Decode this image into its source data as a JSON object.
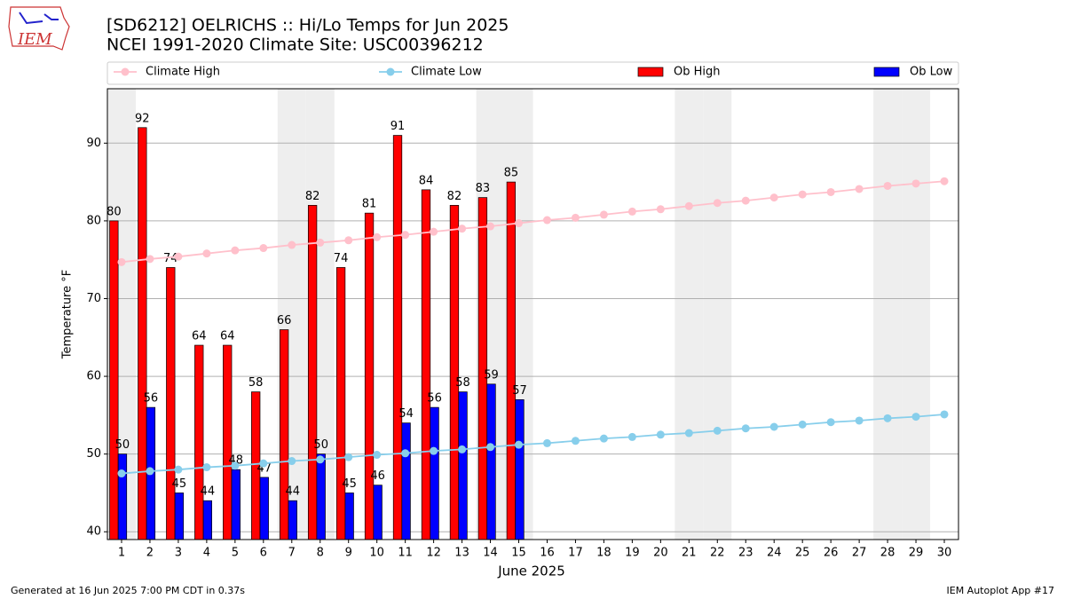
{
  "chart_data": {
    "type": "bar",
    "title": "[SD6212] OELRICHS :: Hi/Lo Temps for Jun 2025",
    "subtitle": "NCEI 1991-2020 Climate Site: USC00396212",
    "logo_text": "IEM",
    "x_label": "June 2025",
    "y_label": "Temperature °F",
    "footer_left": "Generated at 16 Jun 2025 7:00 PM CDT in 0.37s",
    "footer_right": "IEM Autoplot App #17",
    "x": [
      1,
      2,
      3,
      4,
      5,
      6,
      7,
      8,
      9,
      10,
      11,
      12,
      13,
      14,
      15,
      16,
      17,
      18,
      19,
      20,
      21,
      22,
      23,
      24,
      25,
      26,
      27,
      28,
      29,
      30
    ],
    "xlim": [
      0.5,
      30.5
    ],
    "xticks": [
      1,
      2,
      3,
      4,
      5,
      6,
      7,
      8,
      9,
      10,
      11,
      12,
      13,
      14,
      15,
      16,
      17,
      18,
      19,
      20,
      21,
      22,
      23,
      24,
      25,
      26,
      27,
      28,
      29,
      30
    ],
    "ylim": [
      39,
      97
    ],
    "yticks": [
      40,
      50,
      60,
      70,
      80,
      90
    ],
    "grid": true,
    "shaded_days": [
      1,
      7,
      8,
      14,
      15,
      21,
      22,
      28,
      29
    ],
    "series": [
      {
        "name": "Climate High",
        "type": "line",
        "color": "#ffc0cb",
        "values": [
          74.7,
          75.1,
          75.4,
          75.8,
          76.2,
          76.5,
          76.9,
          77.2,
          77.5,
          77.9,
          78.2,
          78.6,
          79.0,
          79.3,
          79.7,
          80.1,
          80.4,
          80.8,
          81.2,
          81.5,
          81.9,
          82.3,
          82.6,
          83.0,
          83.4,
          83.7,
          84.1,
          84.5,
          84.8,
          85.1
        ]
      },
      {
        "name": "Climate Low",
        "type": "line",
        "color": "#87ceeb",
        "values": [
          47.5,
          47.8,
          48.0,
          48.3,
          48.5,
          48.8,
          49.1,
          49.3,
          49.6,
          49.9,
          50.1,
          50.4,
          50.6,
          50.9,
          51.2,
          51.4,
          51.7,
          52.0,
          52.2,
          52.5,
          52.7,
          53.0,
          53.3,
          53.5,
          53.8,
          54.1,
          54.3,
          54.6,
          54.8,
          55.1
        ]
      },
      {
        "name": "Ob High",
        "type": "bar",
        "color": "#ff0000",
        "values": [
          80,
          92,
          74,
          64,
          64,
          58,
          66,
          82,
          74,
          81,
          91,
          84,
          82,
          83,
          85,
          null,
          null,
          null,
          null,
          null,
          null,
          null,
          null,
          null,
          null,
          null,
          null,
          null,
          null,
          null
        ]
      },
      {
        "name": "Ob Low",
        "type": "bar",
        "color": "#0000ff",
        "values": [
          50,
          56,
          45,
          44,
          48,
          47,
          44,
          50,
          45,
          46,
          54,
          56,
          58,
          59,
          57,
          null,
          null,
          null,
          null,
          null,
          null,
          null,
          null,
          null,
          null,
          null,
          null,
          null,
          null,
          null
        ]
      }
    ]
  }
}
